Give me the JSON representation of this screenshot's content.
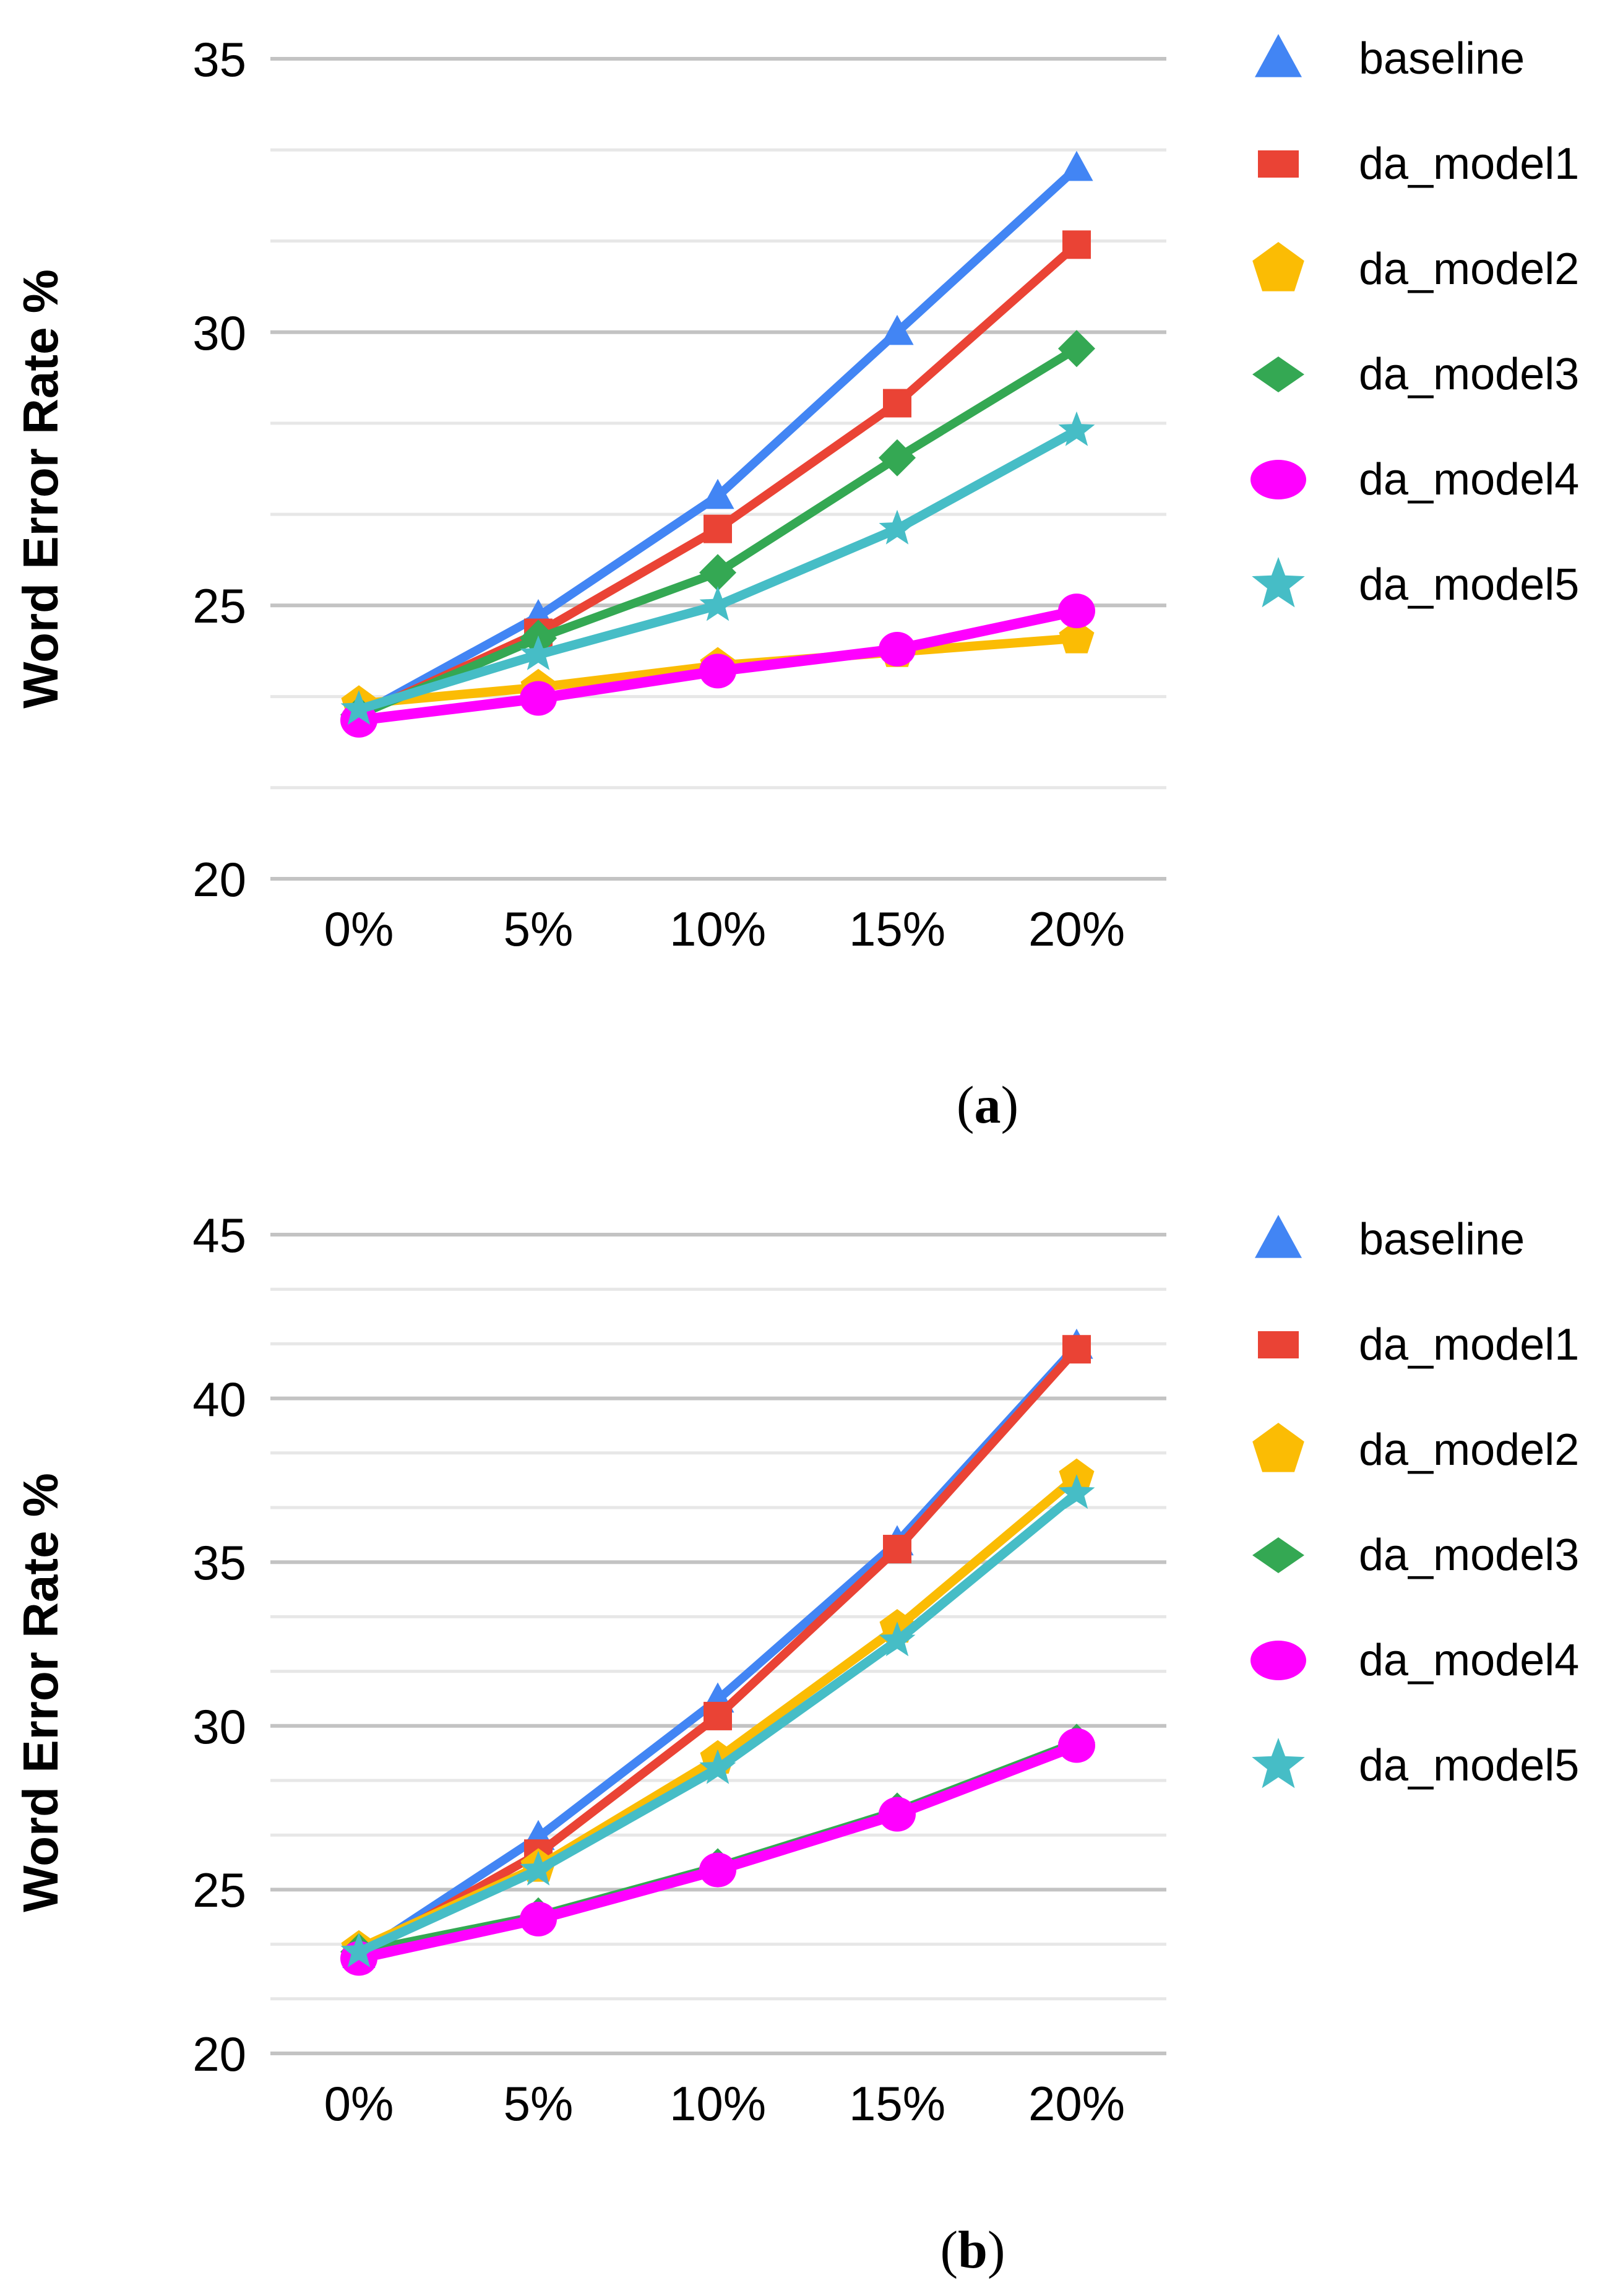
{
  "page": {
    "background": "#ffffff"
  },
  "y_axis_title": "Word Error Rate %",
  "x_tick_labels": [
    "0%",
    "5%",
    "10%",
    "15%",
    "20%"
  ],
  "legend": {
    "position": "right",
    "items": [
      {
        "label": "baseline",
        "icon": "triangle-icon",
        "color": "#4285F4"
      },
      {
        "label": "da_model1",
        "icon": "square-icon",
        "color": "#EA4335"
      },
      {
        "label": "da_model2",
        "icon": "pentagon-icon",
        "color": "#FBBC04"
      },
      {
        "label": "da_model3",
        "icon": "diamond-icon",
        "color": "#34A853"
      },
      {
        "label": "da_model4",
        "icon": "circle-icon",
        "color": "#FF00FF"
      },
      {
        "label": "da_model5",
        "icon": "star-icon",
        "color": "#46BDC6"
      }
    ]
  },
  "chart_data": [
    {
      "id": "a",
      "type": "line",
      "title": "",
      "xlabel": "",
      "ylabel": "Word Error Rate %",
      "caption_open": "(",
      "caption_letter": "a",
      "caption_close": ")",
      "categories": [
        "0%",
        "5%",
        "10%",
        "15%",
        "20%"
      ],
      "y_ticks": [
        20,
        25,
        30,
        35
      ],
      "ylim": [
        20,
        35
      ],
      "grid": {
        "major_interval": 5,
        "minor_divisions": 3,
        "major_color": "#c3c3c3",
        "minor_color": "#e7e7e7"
      },
      "legend_position": "right",
      "series": [
        {
          "name": "baseline",
          "marker": "triangle",
          "color": "#4285F4",
          "line_width": 14,
          "values": [
            23.0,
            24.8,
            27.0,
            30.0,
            33.0
          ]
        },
        {
          "name": "da_model1",
          "marker": "square",
          "color": "#EA4335",
          "line_width": 14,
          "values": [
            23.0,
            24.5,
            26.4,
            28.7,
            31.6
          ]
        },
        {
          "name": "da_model2",
          "marker": "pentagon",
          "color": "#FBBC04",
          "line_width": 15,
          "values": [
            23.2,
            23.5,
            23.9,
            24.15,
            24.4
          ]
        },
        {
          "name": "da_model3",
          "marker": "diamond",
          "color": "#34A853",
          "line_width": 14,
          "values": [
            23.0,
            24.4,
            25.6,
            27.7,
            29.7
          ]
        },
        {
          "name": "da_model4",
          "marker": "circle",
          "color": "#FF00FF",
          "line_width": 17,
          "values": [
            22.9,
            23.3,
            23.8,
            24.2,
            24.9
          ]
        },
        {
          "name": "da_model5",
          "marker": "star",
          "color": "#46BDC6",
          "line_width": 15,
          "values": [
            23.1,
            24.1,
            25.0,
            26.4,
            28.2
          ]
        }
      ]
    },
    {
      "id": "b",
      "type": "line",
      "title": "",
      "xlabel": "",
      "ylabel": "Word Error Rate %",
      "caption_open": "(",
      "caption_letter": "b",
      "caption_close": ")",
      "categories": [
        "0%",
        "5%",
        "10%",
        "15%",
        "20%"
      ],
      "y_ticks": [
        20,
        25,
        30,
        35,
        40,
        45
      ],
      "ylim": [
        20,
        45
      ],
      "grid": {
        "major_interval": 5,
        "minor_divisions": 3,
        "major_color": "#c3c3c3",
        "minor_color": "#e7e7e7"
      },
      "legend_position": "right",
      "series": [
        {
          "name": "baseline",
          "marker": "triangle",
          "color": "#4285F4",
          "line_width": 14,
          "values": [
            23.0,
            26.6,
            30.8,
            35.6,
            41.6
          ]
        },
        {
          "name": "da_model1",
          "marker": "square",
          "color": "#EA4335",
          "line_width": 14,
          "values": [
            23.0,
            26.1,
            30.3,
            35.4,
            41.5
          ]
        },
        {
          "name": "da_model2",
          "marker": "pentagon",
          "color": "#FBBC04",
          "line_width": 15,
          "values": [
            23.2,
            25.7,
            29.0,
            33.0,
            37.6
          ]
        },
        {
          "name": "da_model3",
          "marker": "diamond",
          "color": "#34A853",
          "line_width": 14,
          "values": [
            23.1,
            24.2,
            25.7,
            27.4,
            29.5
          ]
        },
        {
          "name": "da_model4",
          "marker": "circle",
          "color": "#FF00FF",
          "line_width": 17,
          "values": [
            22.9,
            24.1,
            25.6,
            27.3,
            29.4
          ]
        },
        {
          "name": "da_model5",
          "marker": "star",
          "color": "#46BDC6",
          "line_width": 15,
          "values": [
            23.1,
            25.6,
            28.7,
            32.6,
            37.1
          ]
        }
      ]
    }
  ]
}
